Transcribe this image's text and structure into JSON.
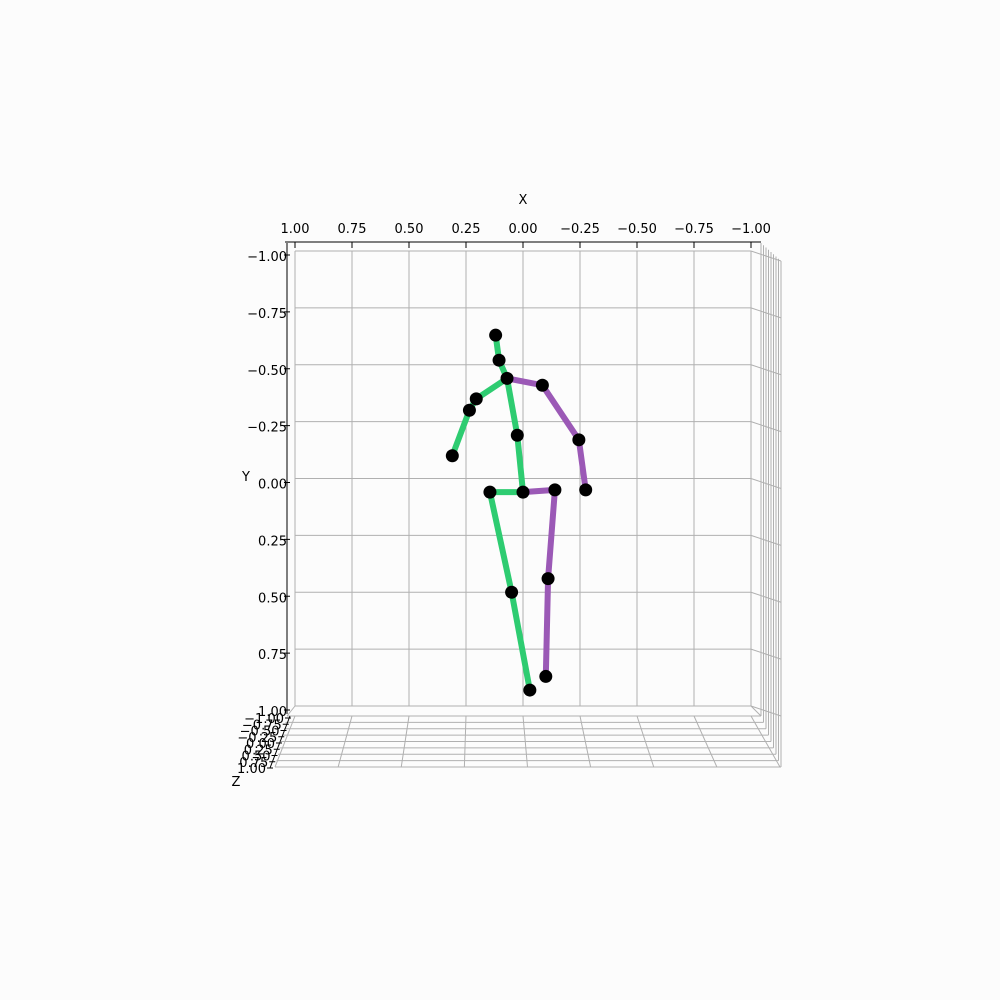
{
  "chart_data": {
    "type": "scatter",
    "subtype": "3d-pose-skeleton",
    "view": "front (looking along z-axis)",
    "xlabel": "X",
    "ylabel": "Y",
    "zlabel": "Z",
    "xlim": [
      1.0,
      -1.0
    ],
    "ylim": [
      -1.0,
      1.0
    ],
    "zlim": [
      -1.0,
      1.0
    ],
    "x_ticks": [
      "1.00",
      "0.75",
      "0.50",
      "0.25",
      "0.00",
      "−0.25",
      "−0.50",
      "−0.75",
      "−1.00"
    ],
    "y_ticks": [
      "−1.00",
      "−0.75",
      "−0.50",
      "−0.25",
      "0.00",
      "0.25",
      "0.50",
      "0.75",
      "1.00"
    ],
    "z_ticks": [
      "−1.00",
      "−0.75",
      "−0.50",
      "−0.25",
      "0.00",
      "0.25",
      "0.50",
      "0.75",
      "1.00"
    ],
    "grid": true,
    "colors": {
      "left_side": "#2ecc71",
      "right_side": "#9b59b6",
      "joint": "#000000",
      "grid": "#b0b0b0",
      "background": "#fcfcfc"
    },
    "joints": [
      {
        "x": 0.12,
        "y": -0.63
      },
      {
        "x": 0.105,
        "y": -0.52
      },
      {
        "x": 0.07,
        "y": -0.44
      },
      {
        "x": -0.085,
        "y": -0.41
      },
      {
        "x": 0.205,
        "y": -0.35
      },
      {
        "x": 0.235,
        "y": -0.3
      },
      {
        "x": -0.245,
        "y": -0.17
      },
      {
        "x": 0.025,
        "y": -0.19
      },
      {
        "x": 0.31,
        "y": -0.1
      },
      {
        "x": -0.275,
        "y": 0.05
      },
      {
        "x": 0.145,
        "y": 0.06
      },
      {
        "x": 0.0,
        "y": 0.06
      },
      {
        "x": -0.14,
        "y": 0.05
      },
      {
        "x": 0.05,
        "y": 0.5
      },
      {
        "x": -0.11,
        "y": 0.44
      },
      {
        "x": -0.03,
        "y": 0.93
      },
      {
        "x": -0.1,
        "y": 0.87
      }
    ],
    "bones": [
      {
        "from": 0,
        "to": 1,
        "side": "left"
      },
      {
        "from": 1,
        "to": 2,
        "side": "left"
      },
      {
        "from": 2,
        "to": 4,
        "side": "left"
      },
      {
        "from": 4,
        "to": 5,
        "side": "left"
      },
      {
        "from": 5,
        "to": 8,
        "side": "left"
      },
      {
        "from": 2,
        "to": 7,
        "side": "left"
      },
      {
        "from": 7,
        "to": 11,
        "side": "left"
      },
      {
        "from": 11,
        "to": 10,
        "side": "left"
      },
      {
        "from": 10,
        "to": 13,
        "side": "left"
      },
      {
        "from": 13,
        "to": 15,
        "side": "left"
      },
      {
        "from": 2,
        "to": 3,
        "side": "right"
      },
      {
        "from": 3,
        "to": 6,
        "side": "right"
      },
      {
        "from": 6,
        "to": 9,
        "side": "right"
      },
      {
        "from": 11,
        "to": 12,
        "side": "right"
      },
      {
        "from": 12,
        "to": 14,
        "side": "right"
      },
      {
        "from": 14,
        "to": 16,
        "side": "right"
      }
    ]
  }
}
